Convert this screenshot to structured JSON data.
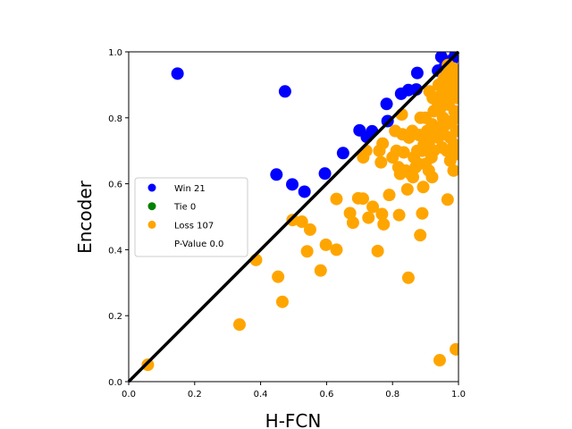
{
  "chart_data": {
    "type": "scatter",
    "title": "",
    "xlabel": "H-FCN",
    "ylabel": "Encoder",
    "xlim": [
      0,
      1
    ],
    "ylim": [
      0,
      1
    ],
    "xticks": [
      "0.0",
      "0.2",
      "0.4",
      "0.6",
      "0.8",
      "1.0"
    ],
    "yticks": [
      "0.0",
      "0.2",
      "0.4",
      "0.6",
      "0.8",
      "1.0"
    ],
    "grid": false,
    "legend_placement": "center-left",
    "diagonal_line": true,
    "diagonal_color": "#000000",
    "series": [
      {
        "name": "Win 21",
        "color": "#0000ff",
        "points": [
          [
            0.148,
            0.934
          ],
          [
            0.474,
            0.88
          ],
          [
            0.448,
            0.628
          ],
          [
            0.496,
            0.598
          ],
          [
            0.533,
            0.576
          ],
          [
            0.595,
            0.631
          ],
          [
            0.65,
            0.693
          ],
          [
            0.7,
            0.762
          ],
          [
            0.722,
            0.742
          ],
          [
            0.738,
            0.759
          ],
          [
            0.782,
            0.842
          ],
          [
            0.785,
            0.79
          ],
          [
            0.826,
            0.873
          ],
          [
            0.848,
            0.884
          ],
          [
            0.872,
            0.886
          ],
          [
            0.875,
            0.936
          ],
          [
            0.938,
            0.943
          ],
          [
            0.948,
            0.985
          ],
          [
            0.96,
            0.96
          ],
          [
            0.99,
            0.99
          ],
          [
            0.98,
            0.975
          ]
        ]
      },
      {
        "name": "Tie 0",
        "color": "#008000",
        "points": []
      },
      {
        "name": "Loss 107",
        "color": "#ffa500",
        "points": [
          [
            0.058,
            0.051
          ],
          [
            0.336,
            0.173
          ],
          [
            0.386,
            0.369
          ],
          [
            0.453,
            0.318
          ],
          [
            0.466,
            0.242
          ],
          [
            0.497,
            0.49
          ],
          [
            0.525,
            0.485
          ],
          [
            0.541,
            0.395
          ],
          [
            0.55,
            0.461
          ],
          [
            0.582,
            0.337
          ],
          [
            0.598,
            0.415
          ],
          [
            0.63,
            0.4
          ],
          [
            0.63,
            0.554
          ],
          [
            0.671,
            0.511
          ],
          [
            0.68,
            0.482
          ],
          [
            0.696,
            0.556
          ],
          [
            0.71,
            0.555
          ],
          [
            0.711,
            0.68
          ],
          [
            0.72,
            0.7
          ],
          [
            0.727,
            0.497
          ],
          [
            0.74,
            0.53
          ],
          [
            0.755,
            0.396
          ],
          [
            0.76,
            0.7
          ],
          [
            0.765,
            0.665
          ],
          [
            0.77,
            0.722
          ],
          [
            0.768,
            0.508
          ],
          [
            0.773,
            0.477
          ],
          [
            0.79,
            0.566
          ],
          [
            0.8,
            0.68
          ],
          [
            0.808,
            0.76
          ],
          [
            0.812,
            0.7
          ],
          [
            0.818,
            0.65
          ],
          [
            0.82,
            0.505
          ],
          [
            0.823,
            0.63
          ],
          [
            0.828,
            0.81
          ],
          [
            0.83,
            0.75
          ],
          [
            0.834,
            0.695
          ],
          [
            0.84,
            0.64
          ],
          [
            0.845,
            0.583
          ],
          [
            0.848,
            0.315
          ],
          [
            0.855,
            0.63
          ],
          [
            0.862,
            0.62
          ],
          [
            0.87,
            0.65
          ],
          [
            0.88,
            0.748
          ],
          [
            0.884,
            0.444
          ],
          [
            0.89,
            0.51
          ],
          [
            0.893,
            0.59
          ],
          [
            0.9,
            0.8
          ],
          [
            0.905,
            0.76
          ],
          [
            0.908,
            0.74
          ],
          [
            0.91,
            0.72
          ],
          [
            0.912,
            0.88
          ],
          [
            0.918,
            0.68
          ],
          [
            0.92,
            0.78
          ],
          [
            0.922,
            0.86
          ],
          [
            0.925,
            0.82
          ],
          [
            0.93,
            0.76
          ],
          [
            0.935,
            0.85
          ],
          [
            0.938,
            0.74
          ],
          [
            0.94,
            0.9
          ],
          [
            0.943,
            0.065
          ],
          [
            0.945,
            0.83
          ],
          [
            0.948,
            0.87
          ],
          [
            0.95,
            0.71
          ],
          [
            0.953,
            0.8
          ],
          [
            0.955,
            0.92
          ],
          [
            0.958,
            0.86
          ],
          [
            0.96,
            0.9
          ],
          [
            0.962,
            0.78
          ],
          [
            0.965,
            0.93
          ],
          [
            0.967,
            0.552
          ],
          [
            0.968,
            0.96
          ],
          [
            0.97,
            0.84
          ],
          [
            0.972,
            0.88
          ],
          [
            0.975,
            0.74
          ],
          [
            0.977,
            0.91
          ],
          [
            0.98,
            0.79
          ],
          [
            0.982,
            0.87
          ],
          [
            0.984,
            0.95
          ],
          [
            0.986,
            0.72
          ],
          [
            0.988,
            0.82
          ],
          [
            0.99,
            0.89
          ],
          [
            0.992,
            0.098
          ],
          [
            0.993,
            0.76
          ],
          [
            0.995,
            0.93
          ],
          [
            0.996,
            0.69
          ],
          [
            0.997,
            0.86
          ],
          [
            0.998,
            0.8
          ],
          [
            0.999,
            0.91
          ],
          [
            0.885,
            0.8
          ],
          [
            0.86,
            0.76
          ],
          [
            0.875,
            0.7
          ],
          [
            0.895,
            0.72
          ],
          [
            0.915,
            0.74
          ],
          [
            0.925,
            0.7
          ],
          [
            0.94,
            0.77
          ],
          [
            0.955,
            0.75
          ],
          [
            0.965,
            0.7
          ],
          [
            0.975,
            0.67
          ],
          [
            0.985,
            0.64
          ],
          [
            0.85,
            0.74
          ],
          [
            0.865,
            0.68
          ],
          [
            0.88,
            0.66
          ],
          [
            0.89,
            0.7
          ],
          [
            0.9,
            0.66
          ],
          [
            0.91,
            0.64
          ],
          [
            0.92,
            0.62
          ]
        ]
      }
    ],
    "extra_legend_entries": [
      {
        "name": "P-Value 0.0",
        "color": "#ffffff"
      }
    ]
  }
}
